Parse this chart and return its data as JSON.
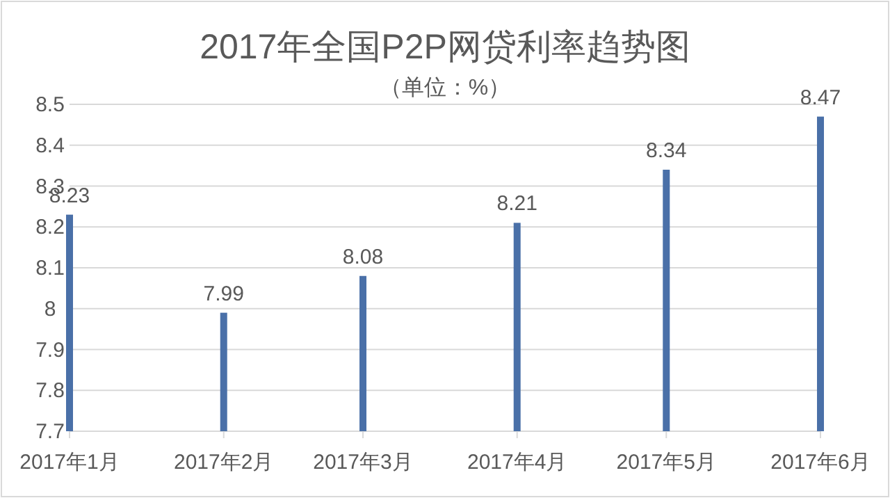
{
  "chart_data": {
    "type": "bar",
    "title": "2017年全国P2P网贷利率趋势图",
    "subtitle": "（单位：%）",
    "x": [
      "2017-01",
      "2017-02",
      "2017-03",
      "2017-04",
      "2017-05",
      "2017-06"
    ],
    "values": [
      8.23,
      7.99,
      8.08,
      8.21,
      8.34,
      8.47
    ],
    "color": "#4a70a8",
    "xlim": [
      "2017-01",
      "2017-06"
    ],
    "xticks": [
      {
        "value": "2017-01",
        "label": "2017年1月"
      },
      {
        "value": "2017-02",
        "label": "2017年2月"
      },
      {
        "value": "2017-03",
        "label": "2017年3月"
      },
      {
        "value": "2017-04",
        "label": "2017年4月"
      },
      {
        "value": "2017-05",
        "label": "2017年5月"
      },
      {
        "value": "2017-06",
        "label": "2017年6月"
      }
    ],
    "ylim": [
      7.7,
      8.5
    ],
    "yticks": [
      7.7,
      7.8,
      7.9,
      8,
      8.1,
      8.2,
      8.3,
      8.4,
      8.5
    ],
    "grid": "y",
    "data_labels": true
  }
}
